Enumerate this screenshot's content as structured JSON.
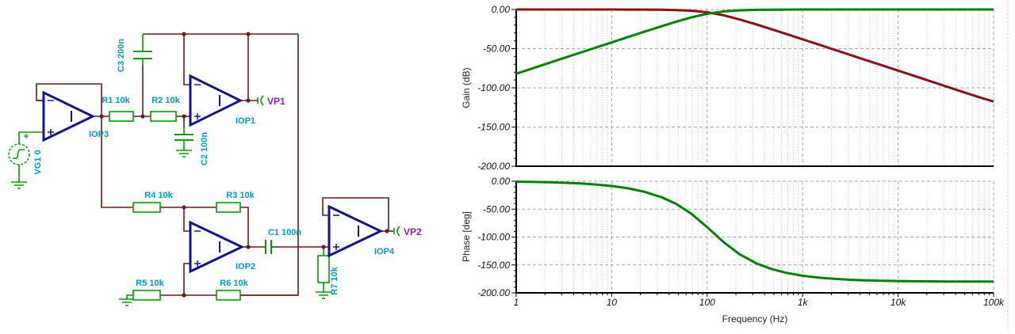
{
  "schematic": {
    "r1": "R1 10k",
    "r2": "R2 10k",
    "r3": "R3 10k",
    "r4": "R4 10k",
    "r5": "R5 10k",
    "r6": "R6 10k",
    "r7": "R7 10k",
    "c1": "C1 100n",
    "c2": "C2 100n",
    "c3": "C3 200n",
    "vg1": "VG1 0",
    "iop1": "IOP1",
    "iop2": "IOP2",
    "iop3": "IOP3",
    "iop4": "IOP4",
    "vp1": "VP1",
    "vp2": "VP2",
    "colors": {
      "wire": "#6b1a1a",
      "component": "#00a000",
      "opamp": "#14148c",
      "label": "#0099cc",
      "probe": "#8b22a8"
    }
  },
  "chart_data": [
    {
      "type": "line",
      "title": "",
      "ylabel": "Gain (dB)",
      "xlabel": "",
      "x_scale": "log",
      "xlim": [
        1,
        100000
      ],
      "ylim": [
        -200,
        0
      ],
      "grid": true,
      "legend": "none",
      "y_tick_values": [
        0,
        -50,
        -100,
        -150,
        -200
      ],
      "y_tick_labels": [
        "0.00",
        "-50.00",
        "-100.00",
        "-150.00",
        "-200.00"
      ],
      "x_tick_labels": [],
      "x": [
        1,
        1.5,
        2.2,
        3.3,
        4.7,
        6.8,
        10,
        15,
        22,
        33,
        47,
        68,
        100,
        150,
        220,
        330,
        470,
        680,
        1000,
        1500,
        2200,
        3300,
        4700,
        6800,
        10000,
        15000,
        22000,
        33000,
        47000,
        68000,
        100000
      ],
      "series": [
        {
          "name": "VP1",
          "color": "#8f1010",
          "values": [
            0,
            0,
            0,
            0,
            0,
            0,
            0,
            -0.1,
            -0.1,
            -0.3,
            -0.7,
            -1.5,
            -3.5,
            -7.5,
            -12.8,
            -19.2,
            -25.1,
            -31.4,
            -38.1,
            -45.1,
            -51.7,
            -58.8,
            -64.9,
            -71.3,
            -78,
            -85.1,
            -91.7,
            -98.8,
            -104.9,
            -111.3,
            -117.5
          ]
        },
        {
          "name": "VP2",
          "color": "#008200",
          "values": [
            -82,
            -74.9,
            -68.3,
            -61.2,
            -55.1,
            -48.7,
            -42,
            -35,
            -28.4,
            -21.5,
            -15.8,
            -10.2,
            -5.5,
            -2.4,
            -1,
            -0.4,
            -0.2,
            -0.1,
            0,
            0,
            0,
            0,
            0,
            0,
            0,
            0,
            0,
            0,
            0,
            0,
            0
          ]
        }
      ]
    },
    {
      "type": "line",
      "title": "",
      "ylabel": "Phase [deg]",
      "xlabel": "Frequency (Hz)",
      "x_scale": "log",
      "xlim": [
        1,
        100000
      ],
      "ylim": [
        -200,
        0
      ],
      "grid": true,
      "legend": "none",
      "y_tick_values": [
        0,
        -50,
        -100,
        -150,
        -200
      ],
      "y_tick_labels": [
        "0.00",
        "-50.00",
        "-100.00",
        "-150.00",
        "-200.00"
      ],
      "x_tick_labels": [
        "1",
        "10",
        "100",
        "1k",
        "10k",
        "100k"
      ],
      "x": [
        1,
        1.5,
        2.2,
        3.3,
        4.7,
        6.8,
        10,
        15,
        22,
        33,
        47,
        68,
        100,
        150,
        220,
        330,
        470,
        680,
        1000,
        1500,
        2200,
        3300,
        4700,
        6800,
        10000,
        15000,
        22000,
        33000,
        47000,
        68000,
        100000
      ],
      "series": [
        {
          "name": "Phase",
          "color": "#008200",
          "values": [
            -0.9,
            -1.3,
            -1.9,
            -2.8,
            -4,
            -5.8,
            -8.5,
            -12.8,
            -18.8,
            -28.3,
            -40.3,
            -58,
            -82.2,
            -109.6,
            -131.1,
            -147.4,
            -157.2,
            -164.2,
            -169.3,
            -172.9,
            -175.1,
            -176.8,
            -177.7,
            -178.4,
            -178.9,
            -179.3,
            -179.5,
            -179.7,
            -179.8,
            -179.8,
            -179.9
          ]
        }
      ]
    }
  ]
}
